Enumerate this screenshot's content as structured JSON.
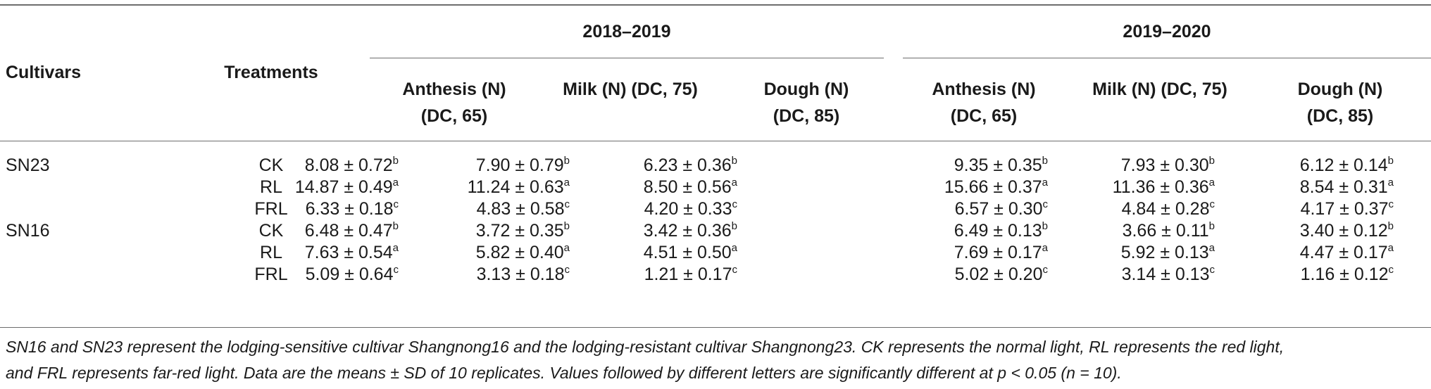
{
  "table": {
    "columns": {
      "cultivars": "Cultivars",
      "treatments": "Treatments",
      "year_groups": [
        "2018–2019",
        "2019–2020"
      ],
      "stages": [
        {
          "line1": "Anthesis (N)",
          "line2": "(DC, 65)"
        },
        {
          "line1": "Milk (N) (DC, 75)",
          "line2": ""
        },
        {
          "line1": "Dough (N)",
          "line2": "(DC, 85)"
        },
        {
          "line1": "Anthesis (N)",
          "line2": "(DC, 65)"
        },
        {
          "line1": "Milk (N) (DC, 75)",
          "line2": ""
        },
        {
          "line1": "Dough (N)",
          "line2": "(DC, 85)"
        }
      ]
    },
    "rows": [
      {
        "cultivar": "SN23",
        "treatment": "CK",
        "cells": [
          {
            "v": "8.08 ± 0.72",
            "s": "b"
          },
          {
            "v": "7.90 ± 0.79",
            "s": "b"
          },
          {
            "v": "6.23 ± 0.36",
            "s": "b"
          },
          {
            "v": "9.35 ± 0.35",
            "s": "b"
          },
          {
            "v": "7.93 ± 0.30",
            "s": "b"
          },
          {
            "v": "6.12 ± 0.14",
            "s": "b"
          }
        ]
      },
      {
        "cultivar": "",
        "treatment": "RL",
        "cells": [
          {
            "v": "14.87 ± 0.49",
            "s": "a"
          },
          {
            "v": "11.24 ± 0.63",
            "s": "a"
          },
          {
            "v": "8.50 ± 0.56",
            "s": "a"
          },
          {
            "v": "15.66 ± 0.37",
            "s": "a"
          },
          {
            "v": "11.36 ± 0.36",
            "s": "a"
          },
          {
            "v": "8.54 ± 0.31",
            "s": "a"
          }
        ]
      },
      {
        "cultivar": "",
        "treatment": "FRL",
        "cells": [
          {
            "v": "6.33 ± 0.18",
            "s": "c"
          },
          {
            "v": "4.83 ± 0.58",
            "s": "c"
          },
          {
            "v": "4.20 ± 0.33",
            "s": "c"
          },
          {
            "v": "6.57 ± 0.30",
            "s": "c"
          },
          {
            "v": "4.84 ± 0.28",
            "s": "c"
          },
          {
            "v": "4.17 ± 0.37",
            "s": "c"
          }
        ]
      },
      {
        "cultivar": "SN16",
        "treatment": "CK",
        "cells": [
          {
            "v": "6.48 ± 0.47",
            "s": "b"
          },
          {
            "v": "3.72 ± 0.35",
            "s": "b"
          },
          {
            "v": "3.42 ± 0.36",
            "s": "b"
          },
          {
            "v": "6.49 ± 0.13",
            "s": "b"
          },
          {
            "v": "3.66 ± 0.11",
            "s": "b"
          },
          {
            "v": "3.40 ± 0.12",
            "s": "b"
          }
        ]
      },
      {
        "cultivar": "",
        "treatment": "RL",
        "cells": [
          {
            "v": "7.63 ± 0.54",
            "s": "a"
          },
          {
            "v": "5.82 ± 0.40",
            "s": "a"
          },
          {
            "v": "4.51 ± 0.50",
            "s": "a"
          },
          {
            "v": "7.69 ± 0.17",
            "s": "a"
          },
          {
            "v": "5.92 ± 0.13",
            "s": "a"
          },
          {
            "v": "4.47 ± 0.17",
            "s": "a"
          }
        ]
      },
      {
        "cultivar": "",
        "treatment": "FRL",
        "cells": [
          {
            "v": "5.09 ± 0.64",
            "s": "c"
          },
          {
            "v": "3.13 ± 0.18",
            "s": "c"
          },
          {
            "v": "1.21 ± 0.17",
            "s": "c"
          },
          {
            "v": "5.02 ± 0.20",
            "s": "c"
          },
          {
            "v": "3.14 ± 0.13",
            "s": "c"
          },
          {
            "v": "1.16 ± 0.12",
            "s": "c"
          }
        ]
      }
    ]
  },
  "footnote": {
    "line1": "SN16 and SN23 represent the lodging-sensitive cultivar Shangnong16 and the lodging-resistant cultivar Shangnong23. CK represents the normal light, RL represents the red light,",
    "line2": "and FRL represents far-red light. Data are the means ± SD of 10 replicates. Values followed by different letters are significantly different at p < 0.05 (n = 10)."
  }
}
